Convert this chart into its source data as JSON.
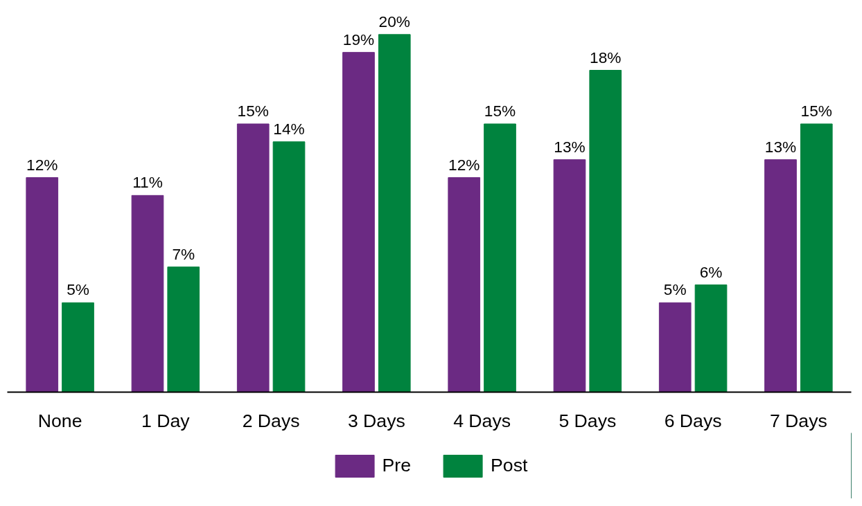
{
  "chart_data": {
    "type": "bar",
    "categories": [
      "None",
      "1 Day",
      "2 Days",
      "3 Days",
      "4 Days",
      "5 Days",
      "6 Days",
      "7 Days"
    ],
    "series": [
      {
        "name": "Pre",
        "color": "#6b2a83",
        "values": [
          12,
          11,
          15,
          19,
          12,
          13,
          5,
          13
        ],
        "value_labels": [
          "12%",
          "11%",
          "15%",
          "19%",
          "12%",
          "13%",
          "5%",
          "13%"
        ]
      },
      {
        "name": "Post",
        "color": "#00833e",
        "values": [
          5,
          7,
          14,
          20,
          15,
          18,
          6,
          15
        ],
        "value_labels": [
          "5%",
          "7%",
          "14%",
          "20%",
          "15%",
          "18%",
          "6%",
          "15%"
        ]
      }
    ],
    "tick_labels": "x",
    "legend": "bottom",
    "grid": false
  }
}
